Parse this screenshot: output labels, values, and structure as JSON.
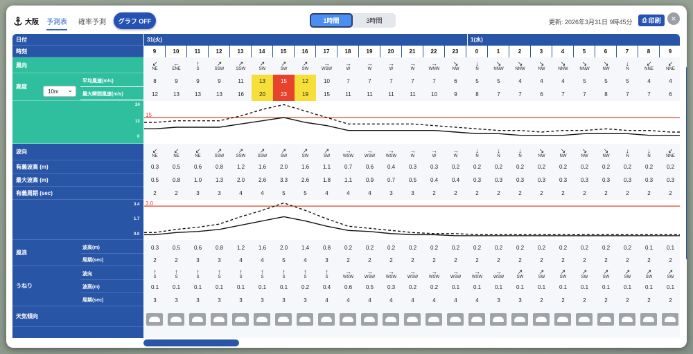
{
  "header": {
    "location": "大阪",
    "tab_forecast": "予測表",
    "tab_probability": "確率予測",
    "graph_off": "グラフ OFF",
    "seg_1h": "1時間",
    "seg_3h": "3時間",
    "updated": "更新: 2026年3月31日 9時45分",
    "print": "印刷",
    "close": "×"
  },
  "labels": {
    "date": "日付",
    "time": "時刻",
    "wind_dir": "風向",
    "height": "高度",
    "height_value": "10m",
    "avg_wind": "平均風速(m/s)",
    "max_wind": "最大瞬間風速(m/s)",
    "wind_axis": [
      "24",
      "12",
      "0"
    ],
    "wave_dir": "波向",
    "sig_wave": "有義波高 (m)",
    "max_wave": "最大波高 (m)",
    "period": "有義周期 (sec)",
    "wave_axis": [
      "3.4",
      "1.7",
      "0.0"
    ],
    "wind_wave": "風浪",
    "swell": "うねり",
    "sub_wave_h": "波高(m)",
    "sub_period": "周期(sec)",
    "sub_dir": "波向",
    "weather": "天気傾向"
  },
  "dates": [
    "31(火)",
    "1(水)"
  ],
  "colors": {
    "accent": "#2855a6",
    "teal": "#2fbf9f",
    "yellow": "#f7df3a",
    "red": "#e8432d"
  },
  "chart_data": {
    "hours": [
      "9",
      "10",
      "11",
      "12",
      "13",
      "14",
      "15",
      "16",
      "17",
      "18",
      "19",
      "20",
      "21",
      "22",
      "23",
      "0",
      "1",
      "2",
      "3",
      "4",
      "5",
      "6",
      "7",
      "8",
      "9"
    ],
    "wind_dir": [
      "NE",
      "ENE",
      "S",
      "SSW",
      "SSW",
      "SW",
      "SW",
      "SW",
      "WSW",
      "W",
      "W",
      "W",
      "W",
      "WNW",
      "NW",
      "N",
      "NNW",
      "NNW",
      "NW",
      "NNW",
      "NNW",
      "NW",
      "N",
      "NNE",
      "NNE"
    ],
    "avg_wind": [
      8,
      9,
      9,
      9,
      11,
      13,
      15,
      12,
      10,
      7,
      7,
      7,
      7,
      7,
      6,
      5,
      5,
      4,
      4,
      4,
      5,
      5,
      5,
      4,
      4
    ],
    "max_wind": [
      12,
      13,
      13,
      13,
      16,
      20,
      23,
      19,
      15,
      11,
      11,
      11,
      11,
      10,
      9,
      8,
      7,
      7,
      6,
      7,
      7,
      8,
      7,
      7,
      6
    ],
    "wind_threshold": "15",
    "wave_dir": [
      "NE",
      "NE",
      "NE",
      "SSW",
      "SSW",
      "SSW",
      "SW",
      "SW",
      "SW",
      "WSW",
      "WSW",
      "WSW",
      "W",
      "W",
      "W",
      "N",
      "N",
      "N",
      "NW",
      "NW",
      "NW",
      "NW",
      "N",
      "N",
      "NNE"
    ],
    "sig_wave": [
      "0.3",
      "0.5",
      "0.6",
      "0.8",
      "1.2",
      "1.6",
      "2.0",
      "1.6",
      "1.1",
      "0.7",
      "0.6",
      "0.4",
      "0.3",
      "0.3",
      "0.2",
      "0.2",
      "0.2",
      "0.2",
      "0.2",
      "0.2",
      "0.2",
      "0.2",
      "0.2",
      "0.2",
      "0.2"
    ],
    "max_wave": [
      "0.5",
      "0.8",
      "1.0",
      "1.3",
      "2.0",
      "2.6",
      "3.3",
      "2.6",
      "1.8",
      "1.1",
      "0.9",
      "0.7",
      "0.5",
      "0.4",
      "0.4",
      "0.3",
      "0.3",
      "0.3",
      "0.3",
      "0.3",
      "0.3",
      "0.3",
      "0.3",
      "0.3",
      "0.3"
    ],
    "period": [
      "2",
      "2",
      "3",
      "3",
      "4",
      "4",
      "5",
      "5",
      "4",
      "4",
      "4",
      "3",
      "3",
      "2",
      "2",
      "2",
      "2",
      "2",
      "2",
      "2",
      "2",
      "2",
      "2",
      "2",
      "2"
    ],
    "wave_threshold": "3.0",
    "windwave_h": [
      "0.3",
      "0.5",
      "0.6",
      "0.8",
      "1.2",
      "1.6",
      "2.0",
      "1.4",
      "0.8",
      "0.2",
      "0.2",
      "0.2",
      "0.2",
      "0.2",
      "0.2",
      "0.2",
      "0.2",
      "0.2",
      "0.2",
      "0.2",
      "0.2",
      "0.2",
      "0.2",
      "0.1",
      "0.1"
    ],
    "windwave_p": [
      "2",
      "2",
      "3",
      "3",
      "4",
      "4",
      "5",
      "4",
      "3",
      "2",
      "2",
      "2",
      "2",
      "2",
      "2",
      "2",
      "2",
      "2",
      "2",
      "2",
      "2",
      "2",
      "2",
      "2",
      "2"
    ],
    "swell_dir": [
      "S",
      "S",
      "S",
      "S",
      "S",
      "S",
      "S",
      "S",
      "S",
      "WSW",
      "WSW",
      "WSW",
      "WSW",
      "WSW",
      "WSW",
      "WSW",
      "WSW",
      "SW",
      "SW",
      "SW",
      "SW",
      "SW",
      "SW",
      "SW",
      "SW"
    ],
    "swell_h": [
      "0.1",
      "0.1",
      "0.1",
      "0.1",
      "0.1",
      "0.1",
      "0.1",
      "0.2",
      "0.4",
      "0.6",
      "0.5",
      "0.3",
      "0.2",
      "0.2",
      "0.1",
      "0.1",
      "0.1",
      "0.1",
      "0.1",
      "0.1",
      "0.1",
      "0.1",
      "0.1",
      "0.1",
      "0.1"
    ],
    "swell_p": [
      "3",
      "3",
      "3",
      "3",
      "3",
      "3",
      "3",
      "3",
      "4",
      "4",
      "4",
      "4",
      "4",
      "4",
      "4",
      "4",
      "3",
      "3",
      "2",
      "2",
      "2",
      "2",
      "2",
      "2",
      "2"
    ]
  }
}
